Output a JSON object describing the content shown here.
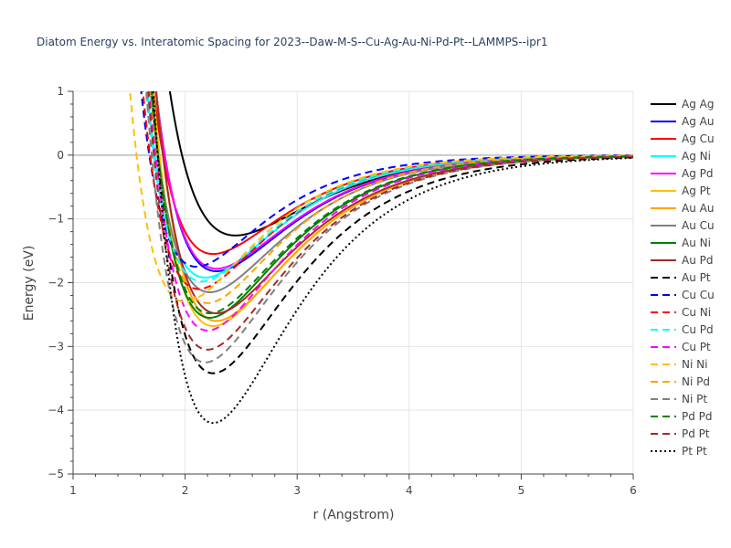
{
  "chart_data": {
    "type": "line",
    "title": "Diatom Energy vs. Interatomic Spacing for 2023--Daw-M-S--Cu-Ag-Au-Ni-Pd-Pt--LAMMPS--ipr1",
    "xlabel": "r (Angstrom)",
    "ylabel": "Energy (eV)",
    "xlim": [
      1,
      6
    ],
    "ylim": [
      -5,
      1
    ],
    "xticks": [
      1,
      2,
      3,
      4,
      5,
      6
    ],
    "yticks": [
      -5,
      -4,
      -3,
      -2,
      -1,
      0,
      1
    ],
    "grid": true,
    "legend_position": "right",
    "series": [
      {
        "name": "Ag Ag",
        "color": "#000000",
        "dash": "solid",
        "r0": 2.45,
        "De": 1.26,
        "a": 1.45
      },
      {
        "name": "Ag Au",
        "color": "#0000ff",
        "dash": "solid",
        "r0": 2.28,
        "De": 1.82,
        "a": 1.5
      },
      {
        "name": "Ag Cu",
        "color": "#ff0000",
        "dash": "solid",
        "r0": 2.25,
        "De": 1.55,
        "a": 1.55
      },
      {
        "name": "Ag Ni",
        "color": "#00ffff",
        "dash": "solid",
        "r0": 2.18,
        "De": 1.92,
        "a": 1.55
      },
      {
        "name": "Ag Pd",
        "color": "#ff00ff",
        "dash": "solid",
        "r0": 2.28,
        "De": 1.78,
        "a": 1.5
      },
      {
        "name": "Ag Pt",
        "color": "#ffc000",
        "dash": "solid",
        "r0": 2.25,
        "De": 2.68,
        "a": 1.45
      },
      {
        "name": "Au Au",
        "color": "#ffa500",
        "dash": "solid",
        "r0": 2.28,
        "De": 2.6,
        "a": 1.45
      },
      {
        "name": "Au Cu",
        "color": "#808080",
        "dash": "solid",
        "r0": 2.22,
        "De": 2.15,
        "a": 1.5
      },
      {
        "name": "Au Ni",
        "color": "#008000",
        "dash": "solid",
        "r0": 2.22,
        "De": 2.55,
        "a": 1.5
      },
      {
        "name": "Au Pd",
        "color": "#a52a2a",
        "dash": "solid",
        "r0": 2.28,
        "De": 2.48,
        "a": 1.45
      },
      {
        "name": "Au Pt",
        "color": "#000000",
        "dash": "dash",
        "r0": 2.25,
        "De": 3.42,
        "a": 1.4
      },
      {
        "name": "Cu Cu",
        "color": "#0000ff",
        "dash": "dash",
        "r0": 2.1,
        "De": 1.75,
        "a": 1.65
      },
      {
        "name": "Cu Ni",
        "color": "#ff0000",
        "dash": "dash",
        "r0": 2.12,
        "De": 2.1,
        "a": 1.6
      },
      {
        "name": "Cu Pd",
        "color": "#00ffff",
        "dash": "dash",
        "r0": 2.15,
        "De": 1.98,
        "a": 1.6
      },
      {
        "name": "Cu Pt",
        "color": "#ff00ff",
        "dash": "dash",
        "r0": 2.2,
        "De": 2.75,
        "a": 1.5
      },
      {
        "name": "Ni Ni",
        "color": "#ffc000",
        "dash": "dash",
        "r0": 2.0,
        "De": 2.3,
        "a": 1.6
      },
      {
        "name": "Ni Pd",
        "color": "#ffa500",
        "dash": "dash",
        "r0": 2.2,
        "De": 2.32,
        "a": 1.55
      },
      {
        "name": "Ni Pt",
        "color": "#808080",
        "dash": "dash",
        "r0": 2.18,
        "De": 3.25,
        "a": 1.45
      },
      {
        "name": "Pd Pd",
        "color": "#008000",
        "dash": "dash",
        "r0": 2.22,
        "De": 2.48,
        "a": 1.5
      },
      {
        "name": "Pd Pt",
        "color": "#a52a2a",
        "dash": "dash",
        "r0": 2.2,
        "De": 3.05,
        "a": 1.45
      },
      {
        "name": "Pt Pt",
        "color": "#000000",
        "dash": "dot",
        "r0": 2.25,
        "De": 4.2,
        "a": 1.4
      }
    ]
  }
}
